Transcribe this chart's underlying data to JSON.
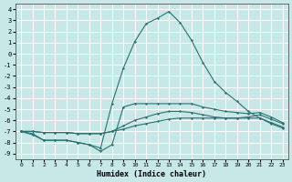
{
  "xlabel": "Humidex (Indice chaleur)",
  "bg_color": "#c8e8e8",
  "grid_color": "#ffffff",
  "line_color": "#2a7070",
  "xlim": [
    -0.5,
    23.5
  ],
  "ylim": [
    -9.5,
    4.5
  ],
  "xticks": [
    0,
    1,
    2,
    3,
    4,
    5,
    6,
    7,
    8,
    9,
    10,
    11,
    12,
    13,
    14,
    15,
    16,
    17,
    18,
    19,
    20,
    21,
    22,
    23
  ],
  "yticks": [
    4,
    3,
    2,
    1,
    0,
    -1,
    -2,
    -3,
    -4,
    -5,
    -6,
    -7,
    -8,
    -9
  ],
  "line_peak_x": [
    0,
    1,
    2,
    3,
    4,
    5,
    6,
    7,
    8,
    9,
    10,
    11,
    12,
    13,
    14,
    15,
    16,
    17,
    18,
    19,
    20,
    21,
    22,
    23
  ],
  "line_peak_y": [
    -7.0,
    -7.2,
    -7.8,
    -7.8,
    -7.8,
    -8.0,
    -8.2,
    -8.5,
    -4.5,
    -1.3,
    1.1,
    2.7,
    3.2,
    3.8,
    2.8,
    1.2,
    -0.8,
    -2.5,
    -3.5,
    -4.3,
    -5.2,
    -5.8,
    -6.3,
    -6.7
  ],
  "line_flat_x": [
    0,
    1,
    2,
    3,
    4,
    5,
    6,
    7,
    8,
    9,
    10,
    11,
    12,
    13,
    14,
    15,
    16,
    17,
    18,
    19,
    20,
    21,
    22,
    23
  ],
  "line_flat_y": [
    -7.0,
    -7.0,
    -7.1,
    -7.1,
    -7.1,
    -7.2,
    -7.2,
    -7.2,
    -7.0,
    -6.8,
    -6.5,
    -6.3,
    -6.1,
    -5.9,
    -5.8,
    -5.8,
    -5.8,
    -5.8,
    -5.8,
    -5.8,
    -5.8,
    -5.8,
    -6.2,
    -6.6
  ],
  "line_mid_x": [
    0,
    1,
    2,
    3,
    4,
    5,
    6,
    7,
    8,
    9,
    10,
    11,
    12,
    13,
    14,
    15,
    16,
    17,
    18,
    19,
    20,
    21,
    22,
    23
  ],
  "line_mid_y": [
    -7.0,
    -7.0,
    -7.1,
    -7.1,
    -7.1,
    -7.2,
    -7.2,
    -7.2,
    -7.0,
    -6.5,
    -6.0,
    -5.7,
    -5.4,
    -5.2,
    -5.2,
    -5.3,
    -5.5,
    -5.7,
    -5.8,
    -5.8,
    -5.7,
    -5.5,
    -5.9,
    -6.3
  ],
  "line_dip_x": [
    0,
    1,
    2,
    3,
    4,
    5,
    6,
    7,
    8,
    9,
    10,
    11,
    12,
    13,
    14,
    15,
    16,
    17,
    18,
    19,
    20,
    21,
    22,
    23
  ],
  "line_dip_y": [
    -7.0,
    -7.3,
    -7.8,
    -7.8,
    -7.8,
    -8.0,
    -8.2,
    -8.8,
    -8.2,
    -4.8,
    -4.5,
    -4.5,
    -4.5,
    -4.5,
    -4.5,
    -4.5,
    -4.8,
    -5.0,
    -5.2,
    -5.3,
    -5.4,
    -5.3,
    -5.7,
    -6.2
  ]
}
